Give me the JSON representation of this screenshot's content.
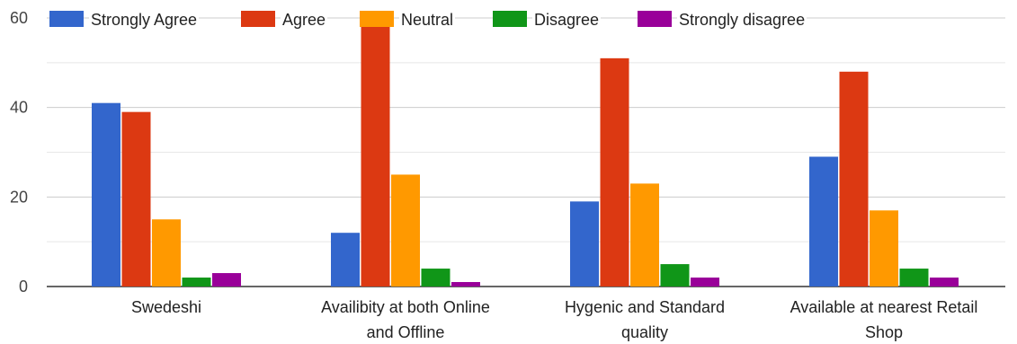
{
  "chart_data": {
    "type": "bar",
    "title": "",
    "xlabel": "",
    "ylabel": "",
    "ylim": [
      0,
      60
    ],
    "yticks": [
      0,
      20,
      40,
      60
    ],
    "grid": true,
    "legend_position": "top",
    "categories": [
      [
        "Swedeshi"
      ],
      [
        "Availibity at both Online",
        "and Offline"
      ],
      [
        "Hygenic and Standard",
        "quality"
      ],
      [
        "Available at nearest Retail",
        "Shop"
      ]
    ],
    "series": [
      {
        "name": "Strongly Agree",
        "color": "#3366cc",
        "values": [
          41,
          12,
          19,
          29
        ]
      },
      {
        "name": "Agree",
        "color": "#dc3912",
        "values": [
          39,
          58,
          51,
          48
        ]
      },
      {
        "name": "Neutral",
        "color": "#ff9900",
        "values": [
          15,
          25,
          23,
          17
        ]
      },
      {
        "name": "Disagree",
        "color": "#109618",
        "values": [
          2,
          4,
          5,
          4
        ]
      },
      {
        "name": "Strongly disagree",
        "color": "#990099",
        "values": [
          3,
          1,
          2,
          2
        ]
      }
    ]
  }
}
